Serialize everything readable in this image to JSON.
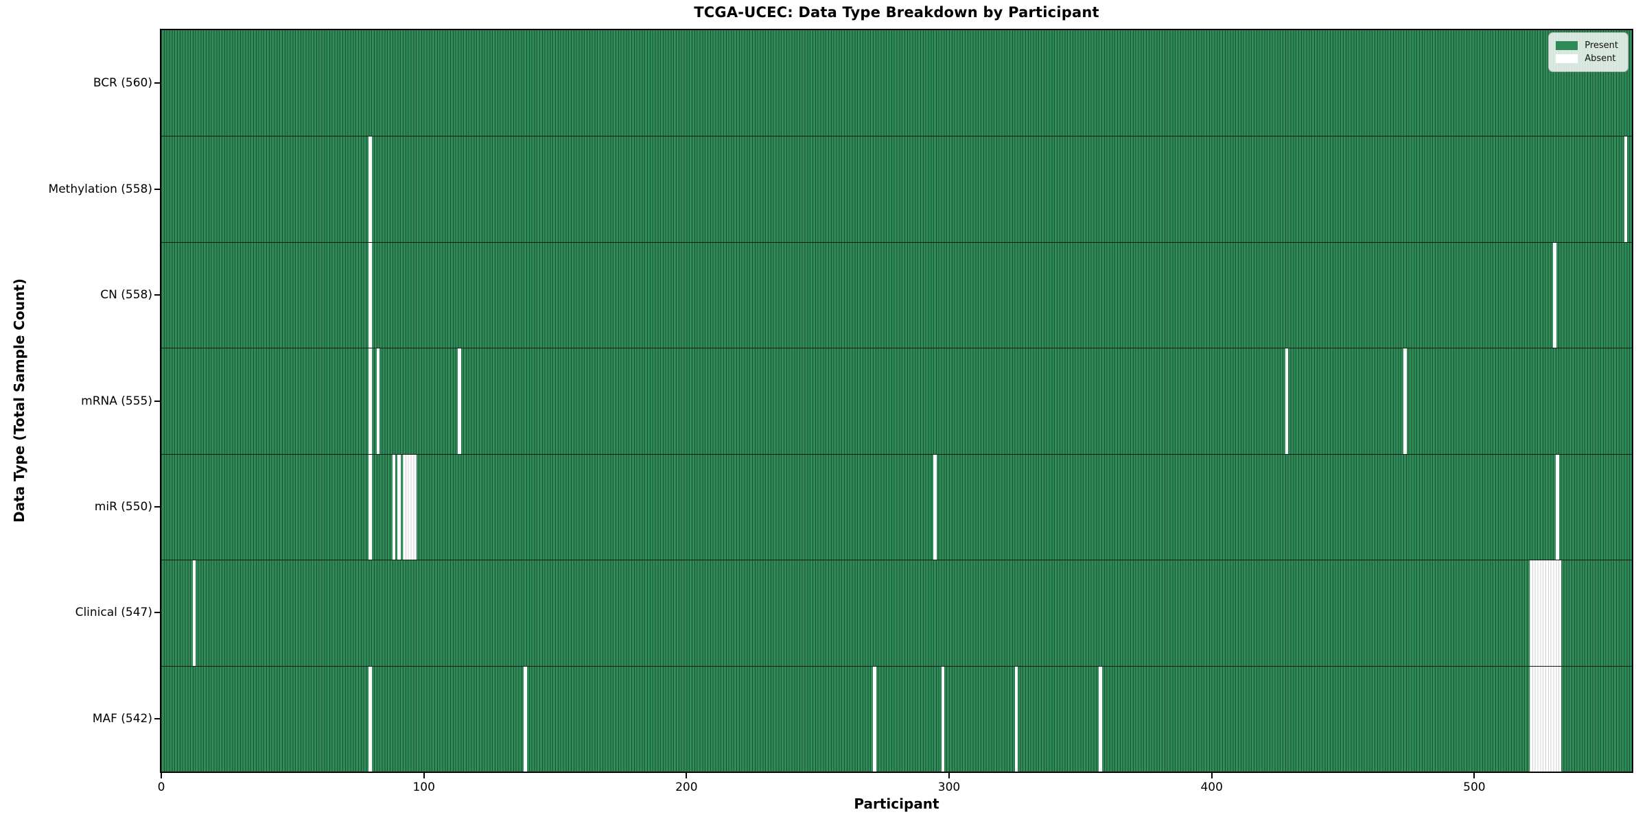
{
  "chart_data": {
    "type": "heatmap",
    "title": "TCGA-UCEC: Data Type Breakdown by Participant",
    "xlabel": "Participant",
    "ylabel": "Data Type (Total Sample Count)",
    "x_ticks": [
      0,
      100,
      200,
      300,
      400,
      500
    ],
    "x_range": [
      0,
      560
    ],
    "total_participants": 560,
    "grid": false,
    "legend": {
      "position": "upper right",
      "items": [
        {
          "label": "Present",
          "color": "#2e8b57"
        },
        {
          "label": "Absent",
          "color": "#ffffff"
        }
      ]
    },
    "colors": {
      "present": "#2e8b57",
      "absent": "#ffffff",
      "bar_edge": "#123d26",
      "row_separator": "#000000"
    },
    "rows": [
      {
        "data_type": "BCR",
        "label": "BCR (560)",
        "present_count": 560,
        "absent_count": 0,
        "absent_participants": []
      },
      {
        "data_type": "Methylation",
        "label": "Methylation (558)",
        "present_count": 558,
        "absent_count": 2,
        "absent_participants": [
          79,
          557
        ]
      },
      {
        "data_type": "CN",
        "label": "CN (558)",
        "present_count": 558,
        "absent_count": 2,
        "absent_participants": [
          79,
          530
        ]
      },
      {
        "data_type": "mRNA",
        "label": "mRNA (555)",
        "present_count": 555,
        "absent_count": 5,
        "absent_participants": [
          79,
          82,
          113,
          428,
          473
        ]
      },
      {
        "data_type": "miR",
        "label": "miR (550)",
        "present_count": 550,
        "absent_count": 10,
        "absent_participants": [
          79,
          88,
          90,
          92,
          93,
          94,
          95,
          96,
          294,
          531
        ]
      },
      {
        "data_type": "Clinical",
        "label": "Clinical (547)",
        "present_count": 547,
        "absent_count": 13,
        "absent_participants": [
          12,
          521,
          522,
          523,
          524,
          525,
          526,
          527,
          528,
          529,
          530,
          531,
          532
        ]
      },
      {
        "data_type": "MAF",
        "label": "MAF (542)",
        "present_count": 542,
        "absent_count": 18,
        "absent_participants": [
          79,
          138,
          271,
          297,
          325,
          357,
          521,
          522,
          523,
          524,
          525,
          526,
          527,
          528,
          529,
          530,
          531,
          532
        ]
      }
    ]
  }
}
